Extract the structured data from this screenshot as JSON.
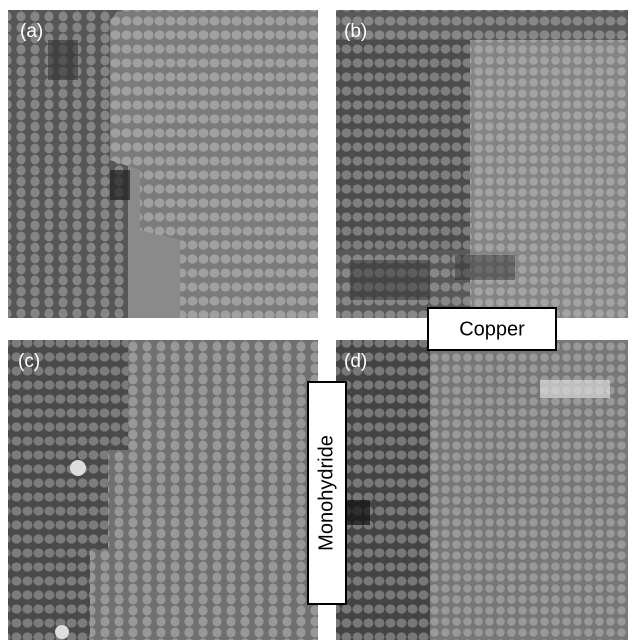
{
  "panels": [
    {
      "label": "(a)"
    },
    {
      "label": "(b)"
    },
    {
      "label": "(c)"
    },
    {
      "label": "(d)"
    }
  ],
  "annotations": {
    "copper": "Copper",
    "monohydride": "Monohydride"
  }
}
